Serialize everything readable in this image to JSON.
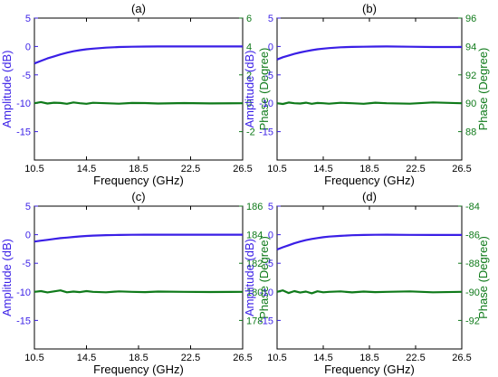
{
  "colors": {
    "amplitude": "#3a1fe6",
    "phase": "#0f7a1a",
    "axis": "#000000"
  },
  "chart_data": [
    {
      "type": "line",
      "title": "(a)",
      "xlabel": "Frequency (GHz)",
      "ylabel_left": "Amplitude (dB)",
      "ylabel_right": "Phase (Degree)",
      "xlim": [
        10.5,
        26.5
      ],
      "xticks": [
        10.5,
        14.5,
        18.5,
        22.5,
        26.5
      ],
      "ylim_left": [
        -20,
        5
      ],
      "yticks_left": [
        -15,
        -10,
        -5,
        0,
        5
      ],
      "ylim_right": [
        -4,
        6
      ],
      "yticks_right": [
        -2,
        0,
        2,
        4,
        6
      ],
      "grid": false,
      "series": [
        {
          "axis": "left",
          "x": [
            10.5,
            11.0,
            11.5,
            12.0,
            12.5,
            13.0,
            13.5,
            14.0,
            14.5,
            15.0,
            16.0,
            17.0,
            18.0,
            19.0,
            20.0,
            22.0,
            24.0,
            26.5
          ],
          "values": [
            -3.0,
            -2.55,
            -2.1,
            -1.75,
            -1.4,
            -1.1,
            -0.85,
            -0.65,
            -0.5,
            -0.38,
            -0.2,
            -0.1,
            -0.05,
            -0.02,
            0,
            0,
            0,
            0
          ]
        },
        {
          "axis": "right",
          "x": [
            10.5,
            11.0,
            11.5,
            12.0,
            12.5,
            13.0,
            13.5,
            14.0,
            14.5,
            15.0,
            16.0,
            17.0,
            18.0,
            19.0,
            20.0,
            22.0,
            24.0,
            26.5
          ],
          "values": [
            0.0,
            0.08,
            -0.02,
            0.04,
            0.02,
            -0.04,
            0.06,
            0.0,
            -0.04,
            0.03,
            0.0,
            -0.03,
            0.02,
            0.01,
            -0.02,
            0.01,
            -0.01,
            0.0
          ]
        }
      ]
    },
    {
      "type": "line",
      "title": "(b)",
      "xlabel": "Frequency (GHz)",
      "ylabel_left": "Amplitude (dB)",
      "ylabel_right": "Phase (Degree)",
      "xlim": [
        10.5,
        26.5
      ],
      "xticks": [
        10.5,
        14.5,
        18.5,
        22.5,
        26.5
      ],
      "ylim_left": [
        -20,
        5
      ],
      "yticks_left": [
        -15,
        -10,
        -5,
        0,
        5
      ],
      "ylim_right": [
        86,
        96
      ],
      "yticks_right": [
        88,
        90,
        92,
        94,
        96
      ],
      "grid": false,
      "series": [
        {
          "axis": "left",
          "x": [
            10.5,
            11.0,
            11.5,
            12.0,
            12.5,
            13.0,
            13.5,
            14.0,
            14.5,
            15.0,
            16.0,
            17.0,
            18.0,
            19.0,
            20.0,
            22.0,
            24.0,
            26.5
          ],
          "values": [
            -2.3,
            -1.9,
            -1.6,
            -1.3,
            -1.05,
            -0.85,
            -0.65,
            -0.5,
            -0.38,
            -0.28,
            -0.15,
            -0.08,
            -0.04,
            -0.02,
            0,
            -0.05,
            -0.1,
            -0.1
          ]
        },
        {
          "axis": "right",
          "x": [
            10.5,
            11.0,
            11.5,
            12.0,
            12.5,
            13.0,
            13.5,
            14.0,
            14.5,
            15.0,
            16.0,
            17.0,
            18.0,
            19.0,
            20.0,
            22.0,
            24.0,
            26.5
          ],
          "values": [
            90.0,
            89.95,
            90.05,
            90.0,
            89.98,
            90.04,
            89.96,
            90.02,
            90.0,
            89.97,
            90.03,
            90.0,
            89.96,
            90.04,
            90.0,
            89.97,
            90.06,
            90.0
          ]
        }
      ]
    },
    {
      "type": "line",
      "title": "(c)",
      "xlabel": "Frequency (GHz)",
      "ylabel_left": "Amplitude (dB)",
      "ylabel_right": "Phase (Degree)",
      "xlim": [
        10.5,
        26.5
      ],
      "xticks": [
        10.5,
        14.5,
        18.5,
        22.5,
        26.5
      ],
      "ylim_left": [
        -20,
        5
      ],
      "yticks_left": [
        -15,
        -10,
        -5,
        0,
        5
      ],
      "ylim_right": [
        176,
        186
      ],
      "yticks_right": [
        178,
        180,
        182,
        184,
        186
      ],
      "grid": false,
      "series": [
        {
          "axis": "left",
          "x": [
            10.5,
            11.0,
            11.5,
            12.0,
            12.5,
            13.0,
            13.5,
            14.0,
            14.5,
            15.0,
            16.0,
            17.0,
            18.0,
            19.0,
            20.0,
            22.0,
            24.0,
            26.5
          ],
          "values": [
            -1.2,
            -1.05,
            -0.9,
            -0.75,
            -0.6,
            -0.5,
            -0.4,
            -0.3,
            -0.22,
            -0.16,
            -0.08,
            -0.04,
            -0.02,
            0,
            0,
            0,
            0,
            0
          ]
        },
        {
          "axis": "right",
          "x": [
            10.5,
            11.0,
            11.5,
            12.0,
            12.5,
            13.0,
            13.5,
            14.0,
            14.5,
            15.0,
            16.0,
            17.0,
            18.0,
            19.0,
            20.0,
            22.0,
            24.0,
            26.5
          ],
          "values": [
            180.0,
            180.05,
            179.96,
            180.03,
            180.1,
            179.97,
            180.02,
            179.98,
            180.05,
            180.0,
            179.97,
            180.03,
            180.0,
            179.98,
            180.02,
            180.0,
            179.99,
            180.0
          ]
        }
      ]
    },
    {
      "type": "line",
      "title": "(d)",
      "xlabel": "Frequency (GHz)",
      "ylabel_left": "Amplitude (dB)",
      "ylabel_right": "Phase (Degree)",
      "xlim": [
        10.5,
        26.5
      ],
      "xticks": [
        10.5,
        14.5,
        18.5,
        22.5,
        26.5
      ],
      "ylim_left": [
        -20,
        5
      ],
      "yticks_left": [
        -15,
        -10,
        -5,
        0,
        5
      ],
      "ylim_right": [
        -94,
        -84
      ],
      "yticks_right": [
        -92,
        -90,
        -88,
        -86,
        -84
      ],
      "grid": false,
      "series": [
        {
          "axis": "left",
          "x": [
            10.5,
            11.0,
            11.5,
            12.0,
            12.5,
            13.0,
            13.5,
            14.0,
            14.5,
            15.0,
            16.0,
            17.0,
            18.0,
            19.0,
            20.0,
            22.0,
            24.0,
            26.5
          ],
          "values": [
            -2.6,
            -2.2,
            -1.85,
            -1.5,
            -1.2,
            -0.95,
            -0.75,
            -0.58,
            -0.45,
            -0.34,
            -0.2,
            -0.1,
            -0.05,
            -0.02,
            0,
            -0.03,
            -0.05,
            -0.05
          ]
        },
        {
          "axis": "right",
          "x": [
            10.5,
            11.0,
            11.5,
            12.0,
            12.5,
            13.0,
            13.5,
            14.0,
            14.5,
            15.0,
            16.0,
            17.0,
            18.0,
            19.0,
            20.0,
            22.0,
            24.0,
            26.5
          ],
          "values": [
            -90.0,
            -89.9,
            -90.08,
            -89.95,
            -90.05,
            -89.98,
            -90.1,
            -89.96,
            -90.03,
            -90.0,
            -89.97,
            -90.04,
            -89.98,
            -90.02,
            -90.0,
            -89.97,
            -90.03,
            -90.0
          ]
        }
      ]
    }
  ]
}
